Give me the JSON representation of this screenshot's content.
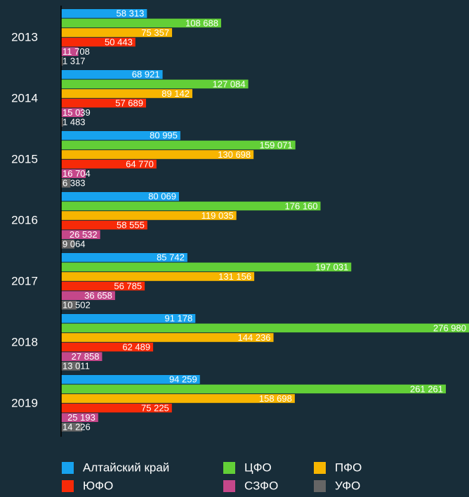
{
  "chart_data": {
    "type": "hbar",
    "categories": [
      "2013",
      "2014",
      "2015",
      "2016",
      "2017",
      "2018",
      "2019"
    ],
    "legend": "bottom",
    "series": [
      {
        "name": "Алтайский край",
        "color": "#17a2ee",
        "values": [
          58313,
          68921,
          80995,
          80069,
          85742,
          91178,
          94259
        ],
        "value_labels": [
          "58 313",
          "68 921",
          "80 995",
          "80 069",
          "85 742",
          "91 178",
          "94 259"
        ]
      },
      {
        "name": "ЦФО",
        "color": "#62cf37",
        "values": [
          108688,
          127084,
          159071,
          176160,
          197031,
          276980,
          261261
        ],
        "value_labels": [
          "108 688",
          "127 084",
          "159 071",
          "176 160",
          "197 031",
          "276 980",
          "261 261"
        ]
      },
      {
        "name": "ПФО",
        "color": "#f7b500",
        "values": [
          75357,
          89142,
          130698,
          119035,
          131156,
          144236,
          158698
        ],
        "value_labels": [
          "75 357",
          "89 142",
          "130 698",
          "119 035",
          "131 156",
          "144 236",
          "158 698"
        ]
      },
      {
        "name": "ЮФО",
        "color": "#f72a08",
        "values": [
          50443,
          57689,
          64770,
          58555,
          56785,
          62489,
          75225
        ],
        "value_labels": [
          "50 443",
          "57 689",
          "64 770",
          "58 555",
          "56 785",
          "62 489",
          "75 225"
        ]
      },
      {
        "name": "СЗФО",
        "color": "#c5478a",
        "values": [
          11708,
          15039,
          16704,
          26532,
          36658,
          27858,
          25193
        ],
        "value_labels": [
          "11 708",
          "15 039",
          "16 704",
          "26 532",
          "36 658",
          "27 858",
          "25 193"
        ]
      },
      {
        "name": "УФО",
        "color": "#656565",
        "values": [
          1317,
          1483,
          6383,
          9064,
          10502,
          13011,
          14226
        ],
        "value_labels": [
          "1 317",
          "1 483",
          "6 383",
          "9 064",
          "10 502",
          "13 011",
          "14 226"
        ]
      }
    ]
  }
}
